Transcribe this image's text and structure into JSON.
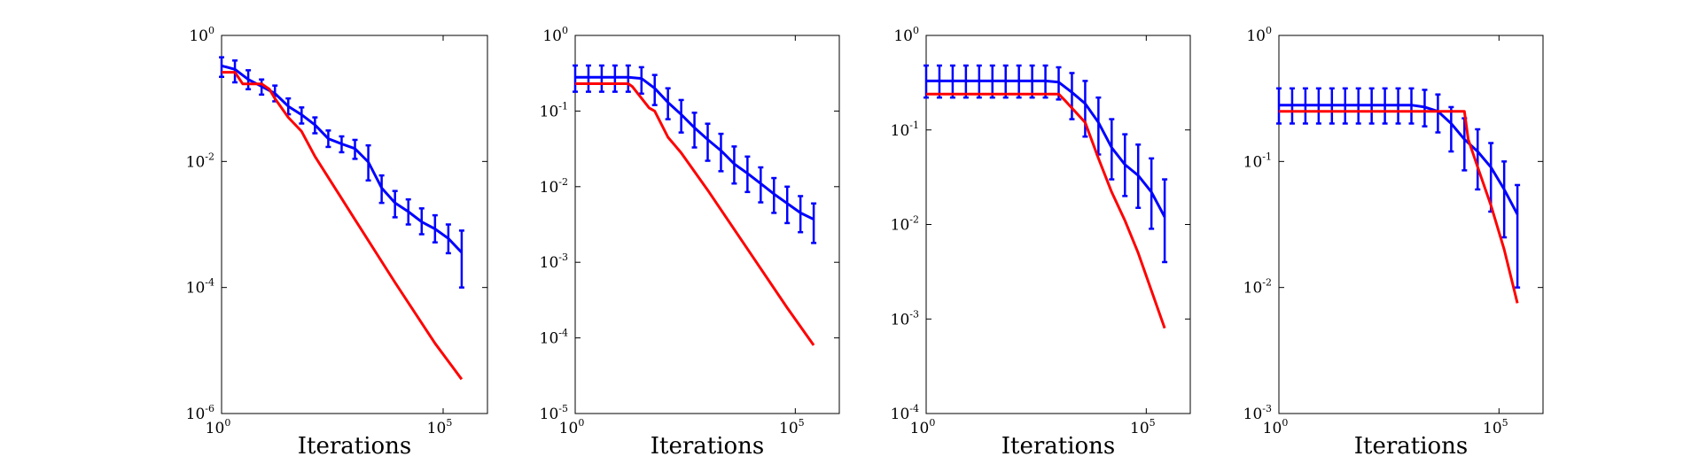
{
  "chart_data": [
    {
      "type": "line",
      "xscale": "log",
      "yscale": "log",
      "xlim": [
        1,
        1000000
      ],
      "ylim": [
        1e-06,
        1
      ],
      "xticks": [
        {
          "base": "10",
          "exp": "0",
          "value": 1
        },
        {
          "base": "10",
          "exp": "5",
          "value": 100000
        }
      ],
      "yticks": [
        {
          "base": "10",
          "exp": "0",
          "value": 1
        },
        {
          "base": "10",
          "exp": "-2",
          "value": 0.01
        },
        {
          "base": "10",
          "exp": "-4",
          "value": 0.0001
        },
        {
          "base": "10",
          "exp": "-6",
          "value": 1e-06
        }
      ],
      "xlabel": "Iterations",
      "ylabel": "",
      "series": [
        {
          "name": "blue-mean-with-error",
          "color": "#0000ff",
          "x": [
            1,
            2,
            4,
            8,
            16,
            32,
            64,
            128,
            256,
            512,
            1024,
            2048,
            4096,
            8192,
            16384,
            32768,
            65536,
            131072,
            262144
          ],
          "y": [
            0.33,
            0.29,
            0.2,
            0.155,
            0.12,
            0.075,
            0.055,
            0.038,
            0.023,
            0.019,
            0.016,
            0.0098,
            0.0038,
            0.0022,
            0.0016,
            0.0011,
            0.00085,
            0.0006,
            0.00036
          ],
          "ylow": [
            0.22,
            0.18,
            0.14,
            0.115,
            0.09,
            0.056,
            0.04,
            0.028,
            0.017,
            0.014,
            0.011,
            0.005,
            0.0022,
            0.0013,
            0.001,
            0.0007,
            0.00052,
            0.00035,
            0.0001
          ],
          "yhigh": [
            0.45,
            0.4,
            0.28,
            0.2,
            0.16,
            0.1,
            0.072,
            0.05,
            0.031,
            0.025,
            0.022,
            0.018,
            0.006,
            0.0034,
            0.0025,
            0.0018,
            0.0014,
            0.001,
            0.0008
          ]
        },
        {
          "name": "red-line",
          "color": "#ff0000",
          "x": [
            1,
            2,
            3,
            8,
            12,
            16,
            32,
            64,
            128,
            1024,
            8192,
            65536,
            262144
          ],
          "y": [
            0.26,
            0.26,
            0.17,
            0.17,
            0.14,
            0.1,
            0.05,
            0.03,
            0.012,
            0.0012,
            0.00012,
            1.3e-05,
            3.5e-06
          ]
        }
      ]
    },
    {
      "type": "line",
      "xscale": "log",
      "yscale": "log",
      "xlim": [
        1,
        1000000
      ],
      "ylim": [
        1e-05,
        1
      ],
      "xticks": [
        {
          "base": "10",
          "exp": "0",
          "value": 1
        },
        {
          "base": "10",
          "exp": "5",
          "value": 100000
        }
      ],
      "yticks": [
        {
          "base": "10",
          "exp": "0",
          "value": 1
        },
        {
          "base": "10",
          "exp": "-1",
          "value": 0.1
        },
        {
          "base": "10",
          "exp": "-2",
          "value": 0.01
        },
        {
          "base": "10",
          "exp": "-3",
          "value": 0.001
        },
        {
          "base": "10",
          "exp": "-4",
          "value": 0.0001
        },
        {
          "base": "10",
          "exp": "-5",
          "value": 1e-05
        }
      ],
      "xlabel": "Iterations",
      "ylabel": "",
      "series": [
        {
          "name": "blue-mean-with-error",
          "color": "#0000ff",
          "x": [
            1,
            2,
            4,
            8,
            16,
            32,
            64,
            128,
            256,
            512,
            1024,
            2048,
            4096,
            8192,
            16384,
            32768,
            65536,
            131072,
            262144
          ],
          "y": [
            0.28,
            0.28,
            0.28,
            0.28,
            0.28,
            0.27,
            0.2,
            0.13,
            0.09,
            0.06,
            0.042,
            0.03,
            0.02,
            0.015,
            0.011,
            0.008,
            0.006,
            0.0045,
            0.0037
          ],
          "ylow": [
            0.18,
            0.18,
            0.18,
            0.18,
            0.18,
            0.17,
            0.12,
            0.078,
            0.052,
            0.033,
            0.022,
            0.016,
            0.011,
            0.0085,
            0.0062,
            0.0045,
            0.0033,
            0.0025,
            0.0018
          ],
          "yhigh": [
            0.4,
            0.4,
            0.4,
            0.4,
            0.4,
            0.38,
            0.3,
            0.2,
            0.14,
            0.095,
            0.068,
            0.05,
            0.034,
            0.025,
            0.018,
            0.013,
            0.01,
            0.0075,
            0.006
          ]
        },
        {
          "name": "red-line",
          "color": "#ff0000",
          "x": [
            1,
            16,
            20,
            48,
            64,
            128,
            256,
            1024,
            8192,
            65536,
            262144
          ],
          "y": [
            0.23,
            0.23,
            0.21,
            0.11,
            0.1,
            0.045,
            0.028,
            0.009,
            0.0015,
            0.00025,
            8e-05
          ]
        }
      ]
    },
    {
      "type": "line",
      "xscale": "log",
      "yscale": "log",
      "xlim": [
        1,
        1000000
      ],
      "ylim": [
        0.0001,
        1
      ],
      "xticks": [
        {
          "base": "10",
          "exp": "0",
          "value": 1
        },
        {
          "base": "10",
          "exp": "5",
          "value": 100000
        }
      ],
      "yticks": [
        {
          "base": "10",
          "exp": "0",
          "value": 1
        },
        {
          "base": "10",
          "exp": "-1",
          "value": 0.1
        },
        {
          "base": "10",
          "exp": "-2",
          "value": 0.01
        },
        {
          "base": "10",
          "exp": "-3",
          "value": 0.001
        },
        {
          "base": "10",
          "exp": "-4",
          "value": 0.0001
        }
      ],
      "xlabel": "Iterations",
      "ylabel": "",
      "series": [
        {
          "name": "blue-mean-with-error",
          "color": "#0000ff",
          "x": [
            1,
            2,
            4,
            8,
            16,
            32,
            64,
            128,
            256,
            512,
            1024,
            2048,
            4096,
            8192,
            16384,
            32768,
            65536,
            131072,
            262144
          ],
          "y": [
            0.33,
            0.33,
            0.33,
            0.33,
            0.33,
            0.33,
            0.33,
            0.33,
            0.33,
            0.33,
            0.32,
            0.25,
            0.19,
            0.12,
            0.065,
            0.043,
            0.033,
            0.022,
            0.012
          ],
          "ylow": [
            0.22,
            0.22,
            0.22,
            0.22,
            0.22,
            0.22,
            0.22,
            0.22,
            0.22,
            0.22,
            0.21,
            0.13,
            0.085,
            0.055,
            0.03,
            0.02,
            0.015,
            0.009,
            0.004
          ],
          "yhigh": [
            0.48,
            0.48,
            0.48,
            0.48,
            0.48,
            0.48,
            0.48,
            0.48,
            0.48,
            0.48,
            0.46,
            0.4,
            0.33,
            0.22,
            0.13,
            0.09,
            0.07,
            0.05,
            0.03
          ]
        },
        {
          "name": "red-line",
          "color": "#ff0000",
          "x": [
            1,
            1024,
            1500,
            4096,
            8192,
            16384,
            32768,
            65536,
            262144
          ],
          "y": [
            0.24,
            0.24,
            0.2,
            0.12,
            0.05,
            0.022,
            0.011,
            0.005,
            0.0008
          ]
        }
      ]
    },
    {
      "type": "line",
      "xscale": "log",
      "yscale": "log",
      "xlim": [
        1,
        1000000
      ],
      "ylim": [
        0.001,
        1
      ],
      "xticks": [
        {
          "base": "10",
          "exp": "0",
          "value": 1
        },
        {
          "base": "10",
          "exp": "5",
          "value": 100000
        }
      ],
      "yticks": [
        {
          "base": "10",
          "exp": "0",
          "value": 1
        },
        {
          "base": "10",
          "exp": "-1",
          "value": 0.1
        },
        {
          "base": "10",
          "exp": "-2",
          "value": 0.01
        },
        {
          "base": "10",
          "exp": "-3",
          "value": 0.001
        }
      ],
      "xlabel": "Iterations",
      "ylabel": "",
      "series": [
        {
          "name": "blue-mean-with-error",
          "color": "#0000ff",
          "x": [
            1,
            2,
            4,
            8,
            16,
            32,
            64,
            128,
            256,
            512,
            1024,
            2048,
            4096,
            8192,
            16384,
            32768,
            65536,
            131072,
            262144
          ],
          "y": [
            0.28,
            0.28,
            0.28,
            0.28,
            0.28,
            0.28,
            0.28,
            0.28,
            0.28,
            0.28,
            0.28,
            0.27,
            0.25,
            0.2,
            0.15,
            0.12,
            0.09,
            0.06,
            0.038
          ],
          "ylow": [
            0.2,
            0.2,
            0.2,
            0.2,
            0.2,
            0.2,
            0.2,
            0.2,
            0.2,
            0.2,
            0.2,
            0.19,
            0.17,
            0.12,
            0.085,
            0.06,
            0.04,
            0.025,
            0.01
          ],
          "yhigh": [
            0.38,
            0.38,
            0.38,
            0.38,
            0.38,
            0.38,
            0.38,
            0.38,
            0.38,
            0.38,
            0.38,
            0.37,
            0.34,
            0.27,
            0.22,
            0.18,
            0.14,
            0.1,
            0.065
          ]
        },
        {
          "name": "red-line",
          "color": "#ff0000",
          "x": [
            1,
            16384,
            20000,
            32768,
            65536,
            131072,
            262144
          ],
          "y": [
            0.25,
            0.25,
            0.15,
            0.09,
            0.045,
            0.02,
            0.0075
          ]
        }
      ]
    }
  ]
}
